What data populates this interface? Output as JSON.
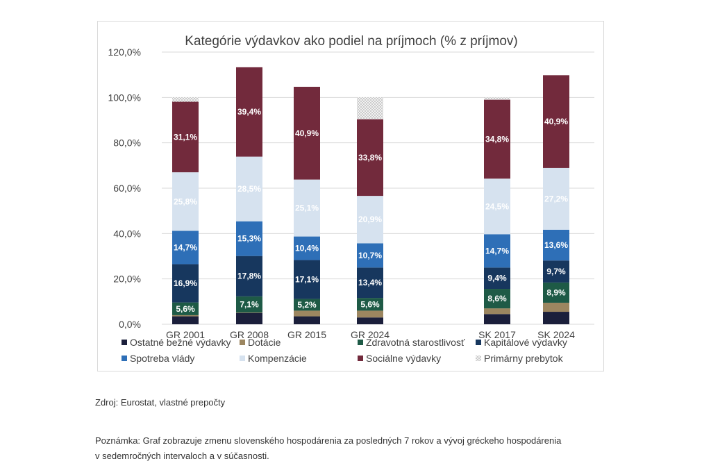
{
  "chart_data": {
    "type": "bar",
    "stacked": true,
    "title": "Kategórie výdavkov ako podiel na príjmoch (% z príjmov)",
    "ylim": [
      0,
      120
    ],
    "yticks": [
      0,
      20,
      40,
      60,
      80,
      100,
      120
    ],
    "ytick_labels": [
      "0,0%",
      "20,0%",
      "40,0%",
      "60,0%",
      "80,0%",
      "100,0%",
      "120,0%"
    ],
    "grid": true,
    "legend": "bottom",
    "categories": [
      "GR 2001",
      "GR 2008",
      "GR 2015",
      "GR 2024",
      "SK 2017",
      "SK 2024"
    ],
    "series": [
      {
        "name": "Ostatné bežné výdavky",
        "color": "#1b1f3b",
        "values": [
          3.5,
          5.0,
          3.5,
          3.0,
          4.5,
          5.5
        ],
        "labels": [
          "",
          "",
          "",
          "",
          "",
          ""
        ]
      },
      {
        "name": "Dotácie",
        "color": "#9c8660",
        "values": [
          0.5,
          0.2,
          2.5,
          3.0,
          2.5,
          4.0
        ],
        "labels": [
          "",
          "",
          "",
          "",
          "",
          ""
        ]
      },
      {
        "name": "Zdravotná starostlivosť",
        "color": "#1e5a46",
        "values": [
          5.6,
          7.1,
          5.2,
          5.6,
          8.6,
          8.9
        ],
        "labels": [
          "5,6%",
          "7,1%",
          "5,2%",
          "5,6%",
          "8,6%",
          "8,9%"
        ]
      },
      {
        "name": "Kapitálové výdavky",
        "color": "#17375e",
        "values": [
          16.9,
          17.8,
          17.1,
          13.4,
          9.4,
          9.7
        ],
        "labels": [
          "16,9%",
          "17,8%",
          "17,1%",
          "13,4%",
          "9,4%",
          "9,7%"
        ]
      },
      {
        "name": "Spotreba vlády",
        "color": "#2e6fb7",
        "values": [
          14.7,
          15.3,
          10.4,
          10.7,
          14.7,
          13.6
        ],
        "labels": [
          "14,7%",
          "15,3%",
          "10,4%",
          "10,7%",
          "14,7%",
          "13,6%"
        ]
      },
      {
        "name": "Kompenzácie",
        "color": "#d6e2ef",
        "values": [
          25.8,
          28.5,
          25.1,
          20.9,
          24.5,
          27.2
        ],
        "labels": [
          "25,8%",
          "28,5%",
          "25,1%",
          "20,9%",
          "24,5%",
          "27,2%"
        ]
      },
      {
        "name": "Sociálne výdavky",
        "color": "#722a3c",
        "values": [
          31.1,
          39.4,
          40.9,
          33.8,
          34.8,
          40.9
        ],
        "labels": [
          "31,1%",
          "39,4%",
          "40,9%",
          "33,8%",
          "34,8%",
          "40,9%"
        ]
      },
      {
        "name": "Primárny prebytok",
        "color": "#dcdcdc",
        "pattern": "dots",
        "values": [
          2.0,
          0,
          0,
          9.7,
          1.0,
          0
        ],
        "labels": [
          "",
          "",
          "",
          "",
          "",
          ""
        ]
      }
    ]
  },
  "source_note": "Zdroj: Eurostat, vlastné prepočty",
  "footnote_line1": "Poznámka: Graf zobrazuje zmenu slovenského hospodárenia za posledných 7 rokov a vývoj gréckeho hospodárenia",
  "footnote_line2": "v sedemročných intervaloch a v súčasnosti."
}
